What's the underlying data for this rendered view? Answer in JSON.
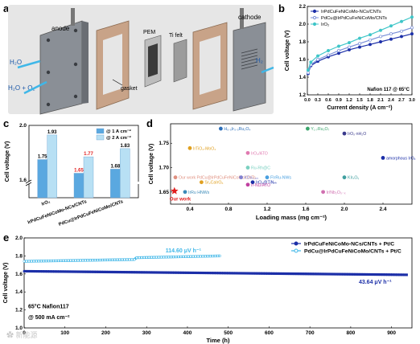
{
  "panels": {
    "a": "a",
    "b": "b",
    "c": "c",
    "d": "d",
    "e": "e"
  },
  "colors": {
    "dark_blue": "#1c2fa8",
    "light_blue": "#3fb7e8",
    "red": "#e01f1f",
    "orange": "#f0952a",
    "pink": "#e07ab0",
    "green": "#3aa56b",
    "navy": "#2c3c8c"
  },
  "schematic": {
    "anode": "anode",
    "cathode": "cathode",
    "pem": "PEM",
    "ti_felt": "Ti felt",
    "gasket": "gasket",
    "h2o_in": "H₂O",
    "h2o_o2_out": "H₂O + O₂",
    "h2_out": "H₂"
  },
  "chart_data": [
    {
      "id": "b",
      "type": "line",
      "xlabel": "Current density (A cm⁻²)",
      "ylabel": "Cell voltage (V)",
      "xlim": [
        0,
        3.0
      ],
      "ylim": [
        1.2,
        2.2
      ],
      "xticks": [
        "0.0",
        "0.3",
        "0.6",
        "0.9",
        "1.2",
        "1.5",
        "1.8",
        "2.1",
        "2.4",
        "2.7",
        "3.0"
      ],
      "yticks": [
        "1.2",
        "1.4",
        "1.6",
        "1.8",
        "2.0",
        "2.2"
      ],
      "annotation": "Nafion 117 @ 65°C",
      "legend_position": "top-left",
      "series": [
        {
          "name": "IrPdCuFeNiCoMo-NCs/CNTs",
          "color": "#1c2fa8",
          "marker": "circle",
          "x": [
            0.02,
            0.1,
            0.3,
            0.6,
            0.9,
            1.2,
            1.5,
            1.8,
            2.1,
            2.4,
            2.7,
            3.0
          ],
          "y": [
            1.44,
            1.53,
            1.58,
            1.63,
            1.67,
            1.71,
            1.74,
            1.77,
            1.8,
            1.83,
            1.86,
            1.89
          ]
        },
        {
          "name": "PdCu@IrPdCuFeNiCoMo/CNTs",
          "color": "#7a8fd8",
          "marker": "circle-open",
          "x": [
            0.02,
            0.1,
            0.3,
            0.6,
            0.9,
            1.2,
            1.5,
            1.8,
            2.1,
            2.4,
            2.7,
            3.0
          ],
          "y": [
            1.45,
            1.54,
            1.6,
            1.65,
            1.7,
            1.74,
            1.78,
            1.82,
            1.86,
            1.89,
            1.92,
            1.96
          ]
        },
        {
          "name": "IrO₂",
          "color": "#3fc6c8",
          "marker": "circle",
          "x": [
            0.02,
            0.1,
            0.3,
            0.6,
            0.9,
            1.2,
            1.5,
            1.8,
            2.1,
            2.4,
            2.7,
            3.0
          ],
          "y": [
            1.48,
            1.57,
            1.64,
            1.7,
            1.75,
            1.79,
            1.84,
            1.88,
            1.93,
            1.98,
            2.03,
            2.08
          ]
        }
      ]
    },
    {
      "id": "c",
      "type": "bar",
      "ylabel": "Cell voltage (V)",
      "categories": [
        "IrO₂",
        "IrPdCuFeNiCoMo-NCs/CNTs",
        "PdCu@IrPdCuFeNiCoMo/CNTs"
      ],
      "ylim": [
        1.6,
        2.0
      ],
      "axis_break": true,
      "yticks": [
        "1.6",
        "2.0"
      ],
      "legend_position": "top-right",
      "series": [
        {
          "name": "@ 1 A cm⁻²",
          "color": "#5aa8e0",
          "values": [
            1.75,
            1.65,
            1.68
          ],
          "labels": [
            "1.75",
            "1.65",
            "1.68"
          ],
          "label_colors": [
            "#000000",
            "#e01f1f",
            "#000000"
          ]
        },
        {
          "name": "@ 2 A cm⁻²",
          "color": "#b8e0f4",
          "values": [
            1.93,
            1.77,
            1.83
          ],
          "labels": [
            "1.93",
            "1.77",
            "1.83"
          ],
          "label_colors": [
            "#000000",
            "#e01f1f",
            "#000000"
          ]
        }
      ]
    },
    {
      "id": "d",
      "type": "scatter",
      "xlabel": "Loading mass (mg cm⁻²)",
      "ylabel": "Cell voltage (V)",
      "xlim": [
        0.2,
        2.7
      ],
      "ylim": [
        1.625,
        1.79
      ],
      "xticks": [
        "0.4",
        "0.8",
        "1.2",
        "1.6",
        "2.0",
        "2.4"
      ],
      "yticks": [
        "1.65",
        "1.70",
        "1.75"
      ],
      "points": [
        {
          "label": "H₀.₅Ir₀.₅Ru₂O₄",
          "x": 0.72,
          "y": 1.78,
          "color": "#2c6eb8"
        },
        {
          "label": "Y₁.₇Ru₂O₇",
          "x": 1.62,
          "y": 1.78,
          "color": "#3aa56b"
        },
        {
          "label": "IrOₓ·nH₂O",
          "x": 2.0,
          "y": 1.77,
          "color": "#3a3a8c"
        },
        {
          "label": "IrTiO₂-MoO₂",
          "x": 0.4,
          "y": 1.74,
          "color": "#e0a020"
        },
        {
          "label": "IrO₂/ATO",
          "x": 1.0,
          "y": 1.73,
          "color": "#e07ab0"
        },
        {
          "label": "amorphous IrOₓ",
          "x": 2.4,
          "y": 1.72,
          "color": "#1c2fa8"
        },
        {
          "label": "Ru-Rh@C",
          "x": 1.0,
          "y": 1.7,
          "color": "#7ad0c0"
        },
        {
          "label": "Our work PdCu@IrPdCuFeNiCoMo/CNTs",
          "x": 0.25,
          "y": 1.68,
          "color": "#e09080"
        },
        {
          "label": "IrCo₀.₆₅",
          "x": 0.93,
          "y": 1.68,
          "color": "#8080d0"
        },
        {
          "label": "FIrRu-NWs",
          "x": 1.2,
          "y": 1.68,
          "color": "#4aa0e0"
        },
        {
          "label": "IrO₂@TiNₙₖ",
          "x": 1.05,
          "y": 1.67,
          "color": "#1c2fa8"
        },
        {
          "label": "KIrₓOᵧ",
          "x": 2.0,
          "y": 1.68,
          "color": "#40a0a0"
        },
        {
          "label": "Sr₂CaIrO₆",
          "x": 0.52,
          "y": 1.67,
          "color": "#e0a020"
        },
        {
          "label": "Ir-ND/ATO",
          "x": 1.0,
          "y": 1.665,
          "color": "#c040a0"
        },
        {
          "label": "IrRu HNWs",
          "x": 0.35,
          "y": 1.65,
          "color": "#3a8ab8"
        },
        {
          "label": "Ir/Nb₂O₅₋ₓ",
          "x": 1.78,
          "y": 1.65,
          "color": "#d070b0"
        },
        {
          "label": "Our work",
          "x": 0.24,
          "y": 1.652,
          "color": "#e01f1f",
          "star": true
        }
      ]
    },
    {
      "id": "e",
      "type": "line",
      "xlabel": "Time (h)",
      "ylabel": "Cell voltage (V)",
      "xlim": [
        0,
        950
      ],
      "ylim": [
        1.0,
        2.0
      ],
      "xticks": [
        "0",
        "100",
        "200",
        "300",
        "400",
        "500",
        "600",
        "700",
        "800",
        "900"
      ],
      "yticks": [
        "1.0",
        "1.2",
        "1.4",
        "1.6",
        "1.8",
        "2.0"
      ],
      "annotation_1": "65°C Nafion117",
      "annotation_2": "@ 500 mA cm⁻²",
      "legend_position": "top-right",
      "series": [
        {
          "name": "IrPdCuFeNiCoMo-NCs/CNTs + Pt/C",
          "color": "#1c2fa8",
          "marker": "circle",
          "x": [
            0,
            940
          ],
          "y": [
            1.63,
            1.59
          ],
          "rate": "43.64 μV h⁻¹"
        },
        {
          "name": "PdCu@IrPdCuFeNiCoMo/CNTs + Pt/C",
          "color": "#3fb7e8",
          "marker": "circle-open",
          "x": [
            0,
            270,
            275,
            480
          ],
          "y": [
            1.74,
            1.76,
            1.78,
            1.8
          ],
          "rate": "114.60 μV h⁻¹"
        }
      ]
    }
  ]
}
